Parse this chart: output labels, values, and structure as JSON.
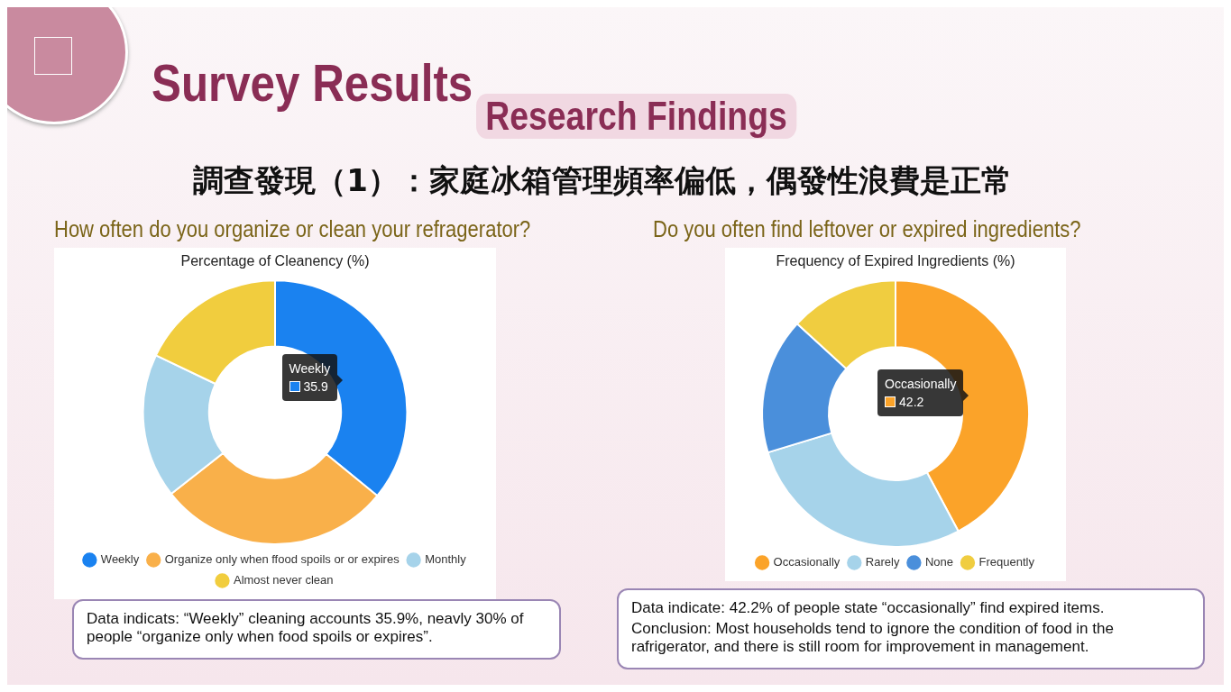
{
  "chart_data": [
    {
      "type": "other",
      "title": "Survey Results",
      "subtitle": "Research Findings",
      "annotations": [
        "調查發現（1）：家庭冰箱管理頻率偏低，偶發性浪費是正常"
      ]
    },
    {
      "type": "donut",
      "subtitle": "How often do you organize or clean your refragerator?",
      "title": "Percentage of Cleanency (%)",
      "categories": [
        "Weekly",
        "Organize only when ffood spoils or or expires",
        "Monthly",
        "Almost never clean"
      ],
      "values": [
        35.9,
        28.5,
        17.7,
        17.9
      ],
      "colors": [
        "#1a82f0",
        "#f9b04a",
        "#a6d3ea",
        "#f1cd3e"
      ],
      "value_labels": [
        "35.9",
        null,
        null,
        null
      ],
      "legend": "bottom",
      "annotations": [
        "Data indicats: “Weekly” cleaning accounts 35.9%, neavly 30% of people “organize only when food spoils or expires”."
      ]
    },
    {
      "type": "donut",
      "subtitle": "Do you often find leftover or expired ingredients?",
      "title": "Frequency of Expired Ingredients (%)",
      "categories": [
        "Occasionally",
        "Rarely",
        "None",
        "Frequently"
      ],
      "values": [
        42.2,
        28.1,
        16.5,
        13.2
      ],
      "colors": [
        "#fba329",
        "#a6d3ea",
        "#4a8fdb",
        "#f0cd40"
      ],
      "value_labels": [
        "42.2",
        null,
        null,
        null
      ],
      "legend": "bottom",
      "annotations": [
        "Data indicate: 42.2% of people state “occasionally” find expired items.",
        "Conclusion: Most households tend to ignore the condition of food in the rafrigerator, and there is still room for improvement in management."
      ]
    }
  ]
}
